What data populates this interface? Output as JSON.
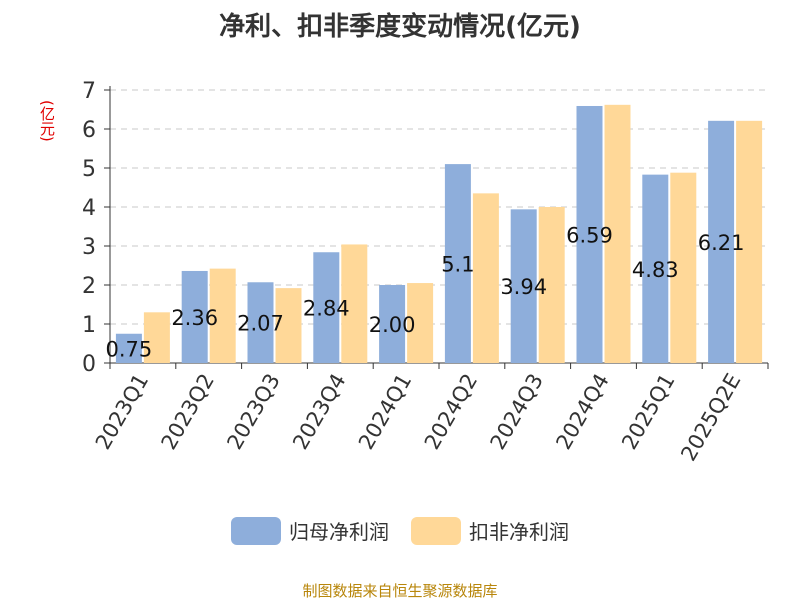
{
  "chart_data": {
    "type": "bar",
    "title": "净利、扣非季度变动情况(亿元)",
    "unit_label": "(亿元)",
    "categories": [
      "2023Q1",
      "2023Q2",
      "2023Q3",
      "2023Q4",
      "2024Q1",
      "2024Q2",
      "2024Q3",
      "2024Q4",
      "2025Q1",
      "2025Q2E"
    ],
    "series": [
      {
        "name": "归母净利润",
        "color": "#8eaedb",
        "values": [
          0.75,
          2.36,
          2.07,
          2.84,
          2.0,
          5.1,
          3.94,
          6.59,
          4.83,
          6.21
        ],
        "labels": [
          "0.75",
          "2.36",
          "2.07",
          "2.84",
          "2.00",
          "5.1",
          "3.94",
          "6.59",
          "4.83",
          "6.21"
        ]
      },
      {
        "name": "扣非净利润",
        "color": "#ffd898",
        "values": [
          1.3,
          2.42,
          1.92,
          3.04,
          2.05,
          4.35,
          4.0,
          6.62,
          4.88,
          6.21
        ]
      }
    ],
    "ylim": [
      0,
      7
    ],
    "yticks": [
      0,
      1,
      2,
      3,
      4,
      5,
      6,
      7
    ],
    "grid": true,
    "legend_position": "bottom"
  },
  "source": "制图数据来自恒生聚源数据库"
}
